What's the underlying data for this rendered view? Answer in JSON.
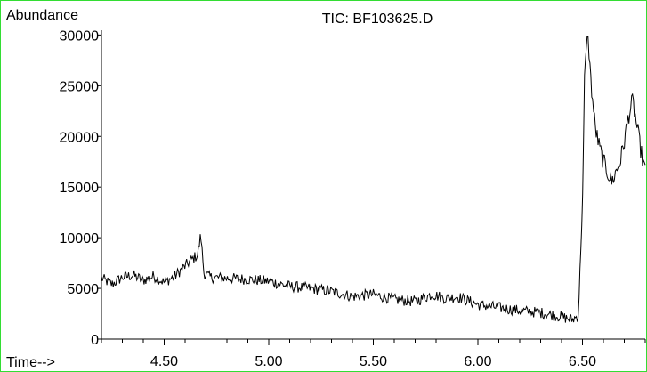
{
  "chart_data": {
    "type": "line",
    "title": "TIC: BF103625.D",
    "ylabel": "Abundance",
    "xlabel": "Time-->",
    "xlim": [
      4.2,
      6.8
    ],
    "ylim": [
      0,
      31000
    ],
    "xticks": [
      4.5,
      5.0,
      5.5,
      6.0,
      6.5
    ],
    "xtick_labels": [
      "4.50",
      "5.00",
      "5.50",
      "6.00",
      "6.50"
    ],
    "yticks": [
      0,
      5000,
      10000,
      15000,
      20000,
      25000,
      30000
    ],
    "ytick_labels": [
      "0",
      "5000",
      "10000",
      "15000",
      "20000",
      "25000",
      "30000"
    ],
    "grid": false,
    "line_color": "#000000",
    "frame_color": "#33dd33",
    "series": [
      {
        "x": [
          4.2,
          4.25,
          4.3,
          4.35,
          4.4,
          4.45,
          4.5,
          4.55,
          4.6,
          4.63,
          4.66,
          4.675,
          4.69,
          4.72,
          4.8,
          4.9,
          5.0,
          5.1,
          5.2,
          5.3,
          5.4,
          5.5,
          5.6,
          5.7,
          5.78,
          5.85,
          5.9,
          6.0,
          6.1,
          6.2,
          6.3,
          6.4,
          6.45,
          6.48,
          6.5,
          6.51,
          6.525,
          6.54,
          6.56,
          6.58,
          6.6,
          6.62,
          6.64,
          6.66,
          6.68,
          6.7,
          6.72,
          6.74,
          6.76,
          6.78,
          6.8
        ],
        "y": [
          6000,
          5400,
          6100,
          6300,
          5800,
          6200,
          5600,
          6200,
          7200,
          7800,
          8300,
          10300,
          6500,
          6100,
          6000,
          5900,
          5700,
          5200,
          5000,
          4700,
          4200,
          4400,
          3900,
          3700,
          4400,
          4000,
          4200,
          3400,
          3100,
          2800,
          2600,
          2200,
          1900,
          2300,
          13000,
          26500,
          30500,
          25500,
          21000,
          19000,
          17500,
          16500,
          15500,
          16500,
          17500,
          19500,
          22000,
          23500,
          21000,
          18500,
          16500
        ]
      }
    ]
  }
}
